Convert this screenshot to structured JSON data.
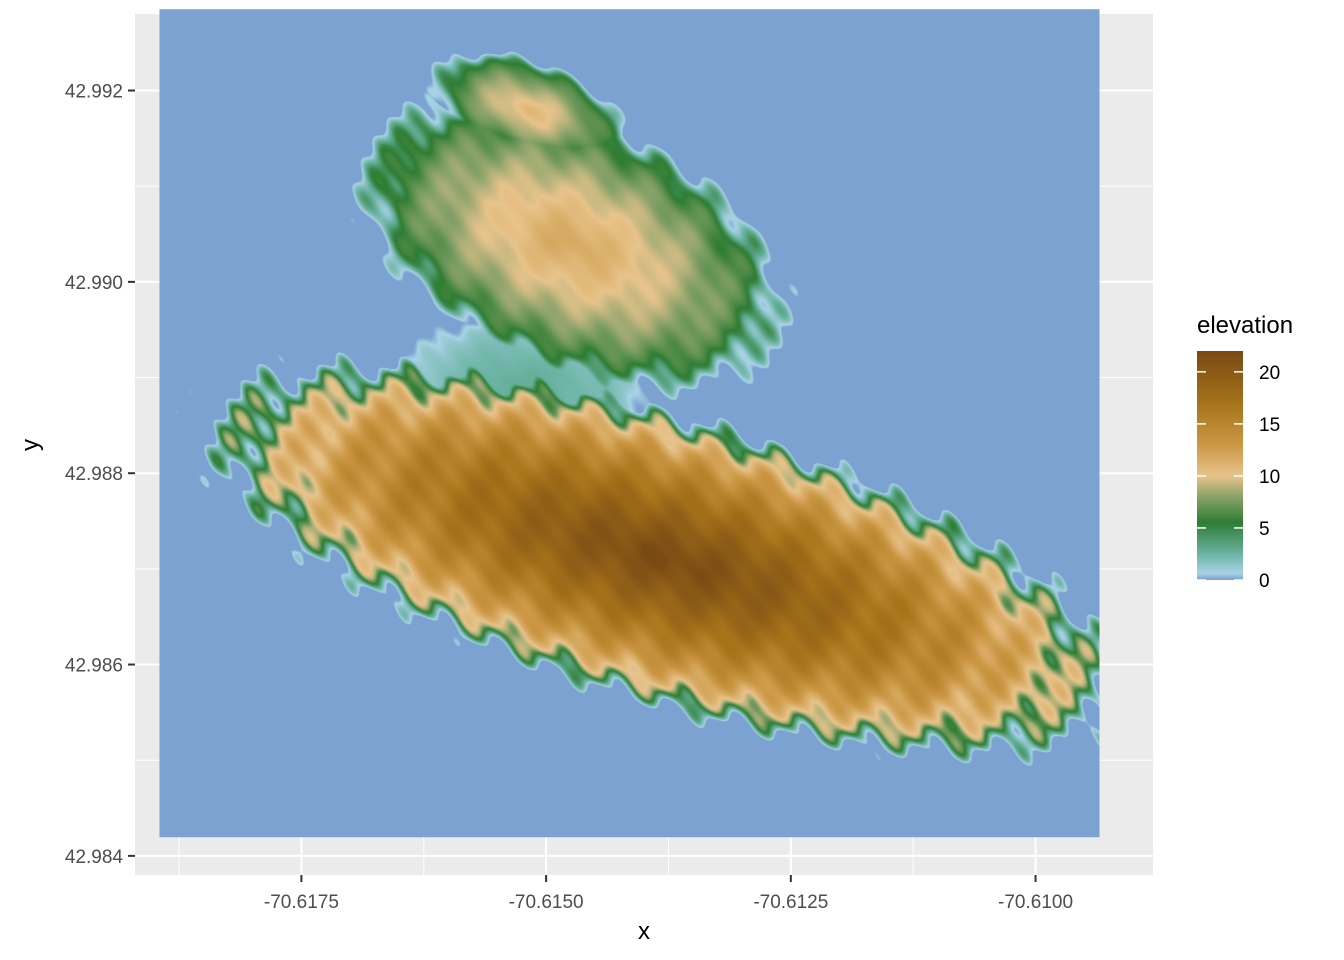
{
  "chart_data": {
    "type": "heatmap",
    "title": "",
    "xlabel": "x",
    "ylabel": "y",
    "xlim": [
      -70.6192,
      -70.6088
    ],
    "ylim": [
      42.9838,
      42.9928
    ],
    "raster_extent": {
      "x": [
        -70.61895,
        -70.60935
      ],
      "y": [
        42.9842,
        42.99285
      ]
    },
    "x_ticks": [
      -70.6175,
      -70.615,
      -70.6125,
      -70.61
    ],
    "x_tick_labels": [
      "-70.6175",
      "-70.6150",
      "-70.6125",
      "-70.6100"
    ],
    "y_ticks": [
      42.984,
      42.986,
      42.988,
      42.99,
      42.992
    ],
    "y_tick_labels": [
      "42.984",
      "42.986",
      "42.988",
      "42.990",
      "42.992"
    ],
    "grid": true,
    "background_color": "#ebebeb",
    "fill_scale": {
      "name": "elevation",
      "limits": [
        0,
        22
      ],
      "breaks": [
        0,
        5,
        10,
        15,
        20
      ],
      "break_labels": [
        "0",
        "5",
        "10",
        "15",
        "20"
      ],
      "colors": [
        {
          "value": 0,
          "color": "#7ba2d0"
        },
        {
          "value": 0.6,
          "color": "#a9d3e6"
        },
        {
          "value": 2.5,
          "color": "#6bb3a3"
        },
        {
          "value": 5.5,
          "color": "#2e7d33"
        },
        {
          "value": 8,
          "color": "#8aa36b"
        },
        {
          "value": 10,
          "color": "#e8c48c"
        },
        {
          "value": 13,
          "color": "#cc9845"
        },
        {
          "value": 17,
          "color": "#a6741a"
        },
        {
          "value": 22,
          "color": "#7a4a14"
        }
      ]
    },
    "legend_position": "right",
    "landforms": [
      {
        "name": "large island",
        "cx": -70.61378,
        "cy": 42.9871,
        "rx": 0.0043,
        "ry": 0.00132,
        "angle": -17,
        "peak": 22
      },
      {
        "name": "upper island",
        "cx": -70.61475,
        "cy": 42.9904,
        "rx": 0.00205,
        "ry": 0.00115,
        "angle": -24,
        "peak": 12
      },
      {
        "name": "north islet",
        "cx": -70.61518,
        "cy": 42.9918,
        "rx": 0.00092,
        "ry": 0.00045,
        "angle": -20,
        "peak": 11
      },
      {
        "name": "small islet",
        "cx": -70.61695,
        "cy": 42.9879,
        "rx": 0.00022,
        "ry": 0.00012,
        "angle": -10,
        "peak": 5
      },
      {
        "name": "shoal",
        "cx": -70.61525,
        "cy": 42.9888,
        "rx": 0.00115,
        "ry": 0.0008,
        "angle": 0,
        "peak": 3
      }
    ]
  }
}
